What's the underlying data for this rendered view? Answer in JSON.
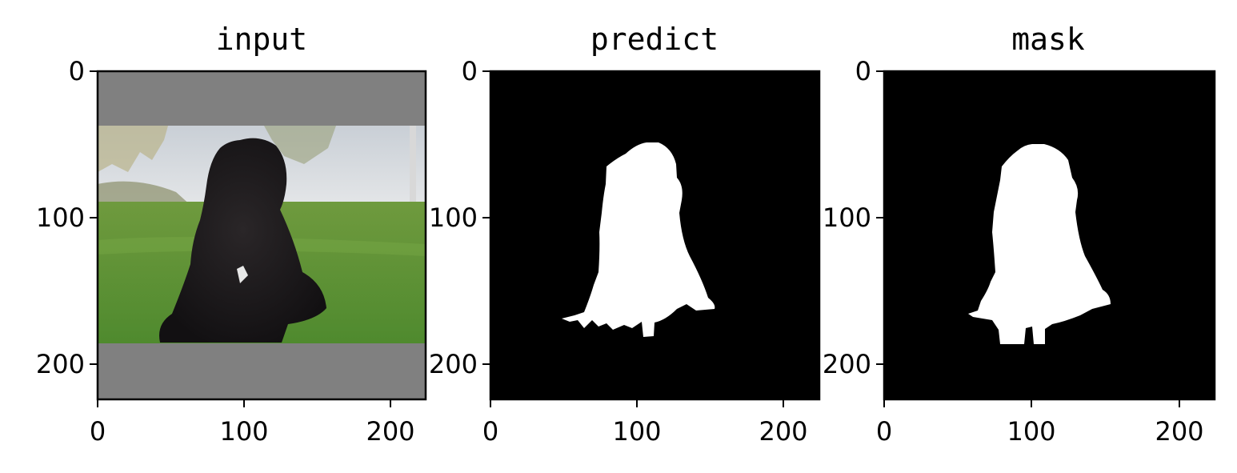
{
  "figure": {
    "background": "#ffffff",
    "panel_count": 3
  },
  "chart_data": [
    {
      "type": "image",
      "title": "input",
      "xlim": [
        0,
        224
      ],
      "ylim": [
        224,
        0
      ],
      "xticks": [
        0,
        100,
        200
      ],
      "yticks": [
        0,
        100,
        200
      ],
      "xtick_labels": [
        "0",
        "100",
        "200"
      ],
      "ytick_labels": [
        "0",
        "100",
        "200"
      ],
      "content": "dog-photo",
      "padding_color": "#808080",
      "photo_rows": [
        37,
        186
      ]
    },
    {
      "type": "image",
      "title": "predict",
      "xlim": [
        0,
        224
      ],
      "ylim": [
        224,
        0
      ],
      "xticks": [
        0,
        100,
        200
      ],
      "yticks": [
        0,
        100,
        200
      ],
      "xtick_labels": [
        "0",
        "100",
        "200"
      ],
      "ytick_labels": [
        "0",
        "100",
        "200"
      ],
      "content": "binary-mask",
      "background_color": "#000000",
      "foreground_color": "#ffffff"
    },
    {
      "type": "image",
      "title": "mask",
      "xlim": [
        0,
        224
      ],
      "ylim": [
        224,
        0
      ],
      "xticks": [
        0,
        100,
        200
      ],
      "yticks": [
        0,
        100,
        200
      ],
      "xtick_labels": [
        "0",
        "100",
        "200"
      ],
      "ytick_labels": [
        "0",
        "100",
        "200"
      ],
      "content": "binary-mask",
      "background_color": "#000000",
      "foreground_color": "#ffffff"
    }
  ]
}
